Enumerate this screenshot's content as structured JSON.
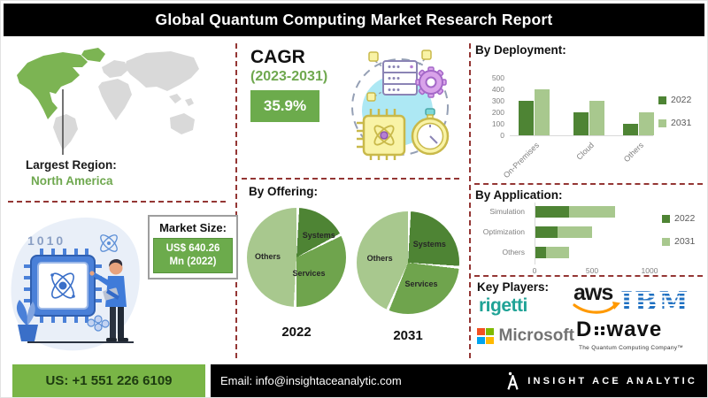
{
  "header": {
    "title": "Global Quantum Computing Market Research Report"
  },
  "left_panel": {
    "largest_region_label": "Largest Region:",
    "largest_region_value": "North America",
    "illustration_text": "1010",
    "market_size": {
      "label": "Market Size:",
      "value_line1": "US$ 640.26",
      "value_line2": "Mn (2022)"
    }
  },
  "cagr": {
    "label": "CAGR",
    "period": "(2023-2031)",
    "value": "35.9%"
  },
  "chart_data": [
    {
      "id": "deployment",
      "type": "bar",
      "title": "By Deployment:",
      "categories": [
        "On-Premises",
        "Cloud",
        "Others"
      ],
      "series": [
        {
          "name": "2022",
          "values": [
            300,
            200,
            100
          ],
          "color": "#4e8434"
        },
        {
          "name": "2031",
          "values": [
            400,
            300,
            200
          ],
          "color": "#a8c88e"
        }
      ],
      "ylim": [
        0,
        500
      ],
      "yticks": [
        0,
        100,
        200,
        300,
        400,
        500
      ],
      "legend_position": "right",
      "grid": false
    },
    {
      "id": "offering",
      "type": "pie",
      "title": "By Offering:",
      "pies": [
        {
          "label": "2022",
          "slices": [
            {
              "name": "Systems",
              "pct": 17,
              "color": "#4e8434"
            },
            {
              "name": "Services",
              "pct": 33,
              "color": "#6fa44d"
            },
            {
              "name": "Others",
              "pct": 50,
              "color": "#a8c88e"
            }
          ]
        },
        {
          "label": "2031",
          "slices": [
            {
              "name": "Systems",
              "pct": 26,
              "color": "#4e8434"
            },
            {
              "name": "Services",
              "pct": 30,
              "color": "#6fa44d"
            },
            {
              "name": "Others",
              "pct": 44,
              "color": "#a8c88e"
            }
          ]
        }
      ]
    },
    {
      "id": "application",
      "type": "stacked_bar_horizontal",
      "title": "By Application:",
      "categories": [
        "Simulation",
        "Optimization",
        "Others"
      ],
      "series": [
        {
          "name": "2022",
          "values": [
            300,
            200,
            100
          ],
          "color": "#4e8434"
        },
        {
          "name": "2031",
          "values": [
            400,
            300,
            200
          ],
          "color": "#a8c88e"
        }
      ],
      "xticks": [
        0,
        500,
        1000
      ],
      "xlim": [
        0,
        1400
      ],
      "legend_position": "right",
      "grid": false
    }
  ],
  "key_players": {
    "title": "Key Players:",
    "logos": [
      {
        "name": "rigetti",
        "text": "rigetti",
        "color": "#1fa396"
      },
      {
        "name": "aws",
        "text": "aws",
        "smile_color": "#ff9900"
      },
      {
        "name": "ibm",
        "text": "IBM",
        "color": "#1f70c1"
      },
      {
        "name": "microsoft",
        "text": "Microsoft",
        "square_colors": [
          "#f25022",
          "#7fba00",
          "#00a4ef",
          "#ffb900"
        ]
      },
      {
        "name": "d-wave",
        "text_d": "D",
        "text_rest": "wave",
        "tagline": "The Quantum Computing Company™"
      }
    ]
  },
  "footer": {
    "phone": "US: +1 551 226 6109",
    "email": "Email: info@insightaceanalytic.com",
    "brand": "INSIGHT ACE ANALYTIC"
  },
  "colors": {
    "accent_green": "#6cab4c",
    "dark_green": "#4e8434",
    "mid_green": "#6fa44d",
    "light_green": "#a8c88e",
    "map_green": "#7cb453",
    "map_gray": "#d9d9d9",
    "divider_maroon": "#943634",
    "header_bg": "#000000",
    "footer_green": "#79b546"
  }
}
